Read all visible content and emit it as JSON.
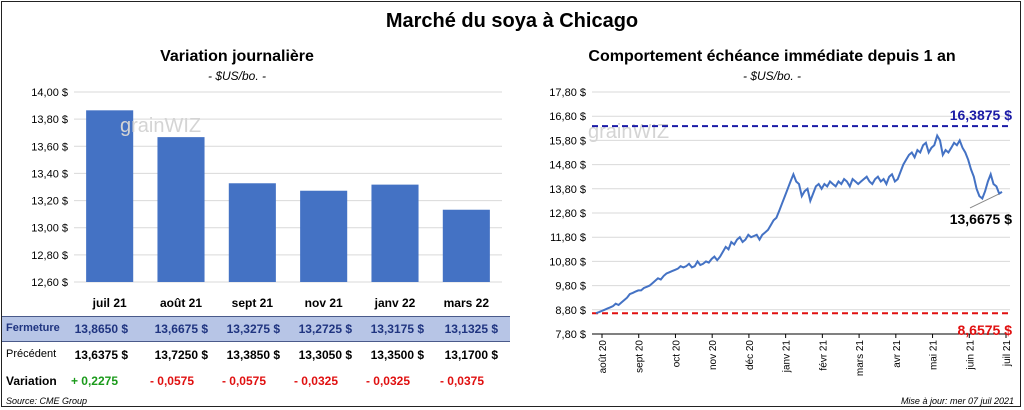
{
  "title": "Marché du soya à Chicago",
  "left": {
    "subtitle": "Variation  journalière",
    "unit": "- $US/bo. -"
  },
  "right": {
    "subtitle": "Comportement  échéance immédiate depuis 1 an",
    "unit": "- $US/bo. -"
  },
  "watermark": "grainWIZ",
  "table": {
    "rows": [
      {
        "label": "Fermeture",
        "values": [
          "13,8650  $",
          "13,6675  $",
          "13,3275  $",
          "13,2725  $",
          "13,3175  $",
          "13,1325  $"
        ]
      },
      {
        "label": "Précédent",
        "values": [
          "13,6375  $",
          "13,7250  $",
          "13,3850  $",
          "13,3050  $",
          "13,3500  $",
          "13,1700  $"
        ]
      },
      {
        "label": "Variation",
        "values": [
          "+ 0,2275",
          "- 0,0575",
          "- 0,0575",
          "- 0,0325",
          "- 0,0325",
          "- 0,0375"
        ]
      }
    ]
  },
  "footer": {
    "source": "Source: CME Group",
    "update": "Mise à jour: mer 07 juil 2021"
  },
  "colors": {
    "bar": "#4472c4",
    "line": "#4472c4",
    "high": "#1a1aa6",
    "low": "#e01010",
    "positive": "#1a9a1a",
    "negative": "#e01010"
  },
  "chart_data": [
    {
      "type": "bar",
      "title": "Variation  journalière",
      "categories": [
        "juil 21",
        "août 21",
        "sept 21",
        "nov 21",
        "janv 22",
        "mars 22"
      ],
      "values": [
        13.865,
        13.6675,
        13.3275,
        13.2725,
        13.3175,
        13.1325
      ],
      "ylim": [
        12.6,
        14.0
      ],
      "yticks": [
        12.6,
        12.8,
        13.0,
        13.2,
        13.4,
        13.6,
        13.8,
        14.0
      ],
      "ytick_labels": [
        "12,60 $",
        "12,80 $",
        "13,00 $",
        "13,20 $",
        "13,40 $",
        "13,60 $",
        "13,80 $",
        "14,00 $"
      ],
      "grid": true
    },
    {
      "type": "line",
      "title": "Comportement  échéance immédiate depuis 1 an",
      "ylim": [
        7.8,
        17.8
      ],
      "yticks": [
        7.8,
        8.8,
        9.8,
        10.8,
        11.8,
        12.8,
        13.8,
        14.8,
        15.8,
        16.8,
        17.8
      ],
      "ytick_labels": [
        "7,80 $",
        "8,80 $",
        "9,80 $",
        "10,80 $",
        "11,80 $",
        "12,80 $",
        "13,80 $",
        "14,80 $",
        "15,80 $",
        "16,80 $",
        "17,80 $"
      ],
      "xticks": [
        "août 20",
        "sept 20",
        "oct 20",
        "nov 20",
        "déc 20",
        "janv 21",
        "févr 21",
        "mars 21",
        "avr 21",
        "mai 21",
        "juin 21",
        "juil 21"
      ],
      "high": {
        "value": 16.3875,
        "label": "16,3875 $"
      },
      "low": {
        "value": 8.6575,
        "label": "8,6575 $"
      },
      "last": {
        "value": 13.6675,
        "label": "13,6675 $"
      },
      "series": [
        {
          "values": [
            8.66,
            8.7,
            8.75,
            8.8,
            8.85,
            8.9,
            8.95,
            9.05,
            9.0,
            9.1,
            9.2,
            9.3,
            9.45,
            9.5,
            9.55,
            9.6,
            9.6,
            9.7,
            9.75,
            9.8,
            9.9,
            10.0,
            10.1,
            10.05,
            10.2,
            10.3,
            10.35,
            10.4,
            10.45,
            10.5,
            10.6,
            10.55,
            10.6,
            10.7,
            10.55,
            10.6,
            10.8,
            10.65,
            10.7,
            10.8,
            10.75,
            10.9,
            11.0,
            10.85,
            11.0,
            11.2,
            11.4,
            11.3,
            11.6,
            11.5,
            11.7,
            11.8,
            11.6,
            11.7,
            11.9,
            11.8,
            11.85,
            11.9,
            11.7,
            11.9,
            12.0,
            12.1,
            12.3,
            12.5,
            12.6,
            12.9,
            13.2,
            13.5,
            13.8,
            14.1,
            14.4,
            14.1,
            14.0,
            13.5,
            13.7,
            13.8,
            13.3,
            13.6,
            13.9,
            14.0,
            13.8,
            14.0,
            13.9,
            14.1,
            14.0,
            13.9,
            14.1,
            14.0,
            14.2,
            14.1,
            13.9,
            14.2,
            14.1,
            14.0,
            14.1,
            14.2,
            14.3,
            14.1,
            14.0,
            14.2,
            14.3,
            14.1,
            14.2,
            14.0,
            14.3,
            14.4,
            14.1,
            14.2,
            14.5,
            14.8,
            15.0,
            15.2,
            15.3,
            15.1,
            15.4,
            15.3,
            15.6,
            15.7,
            15.3,
            15.5,
            15.6,
            16.0,
            15.8,
            15.2,
            15.4,
            15.3,
            15.5,
            15.7,
            15.6,
            15.8,
            15.5,
            15.3,
            15.0,
            14.6,
            14.3,
            13.8,
            13.5,
            13.4,
            13.7,
            14.1,
            14.4,
            14.0,
            13.9,
            13.6,
            13.67
          ]
        }
      ]
    }
  ]
}
